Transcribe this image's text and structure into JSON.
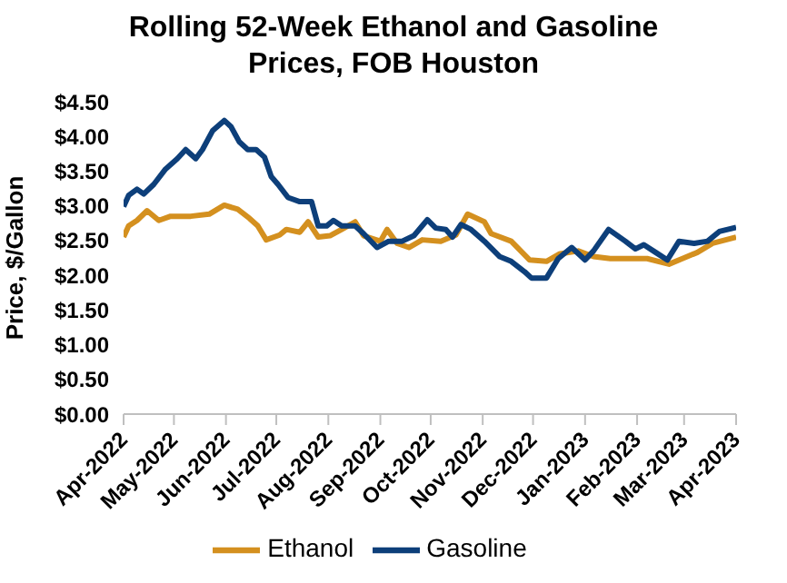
{
  "chart_data": {
    "type": "line",
    "title": "Rolling 52-Week Ethanol and Gasoline Prices, FOB Houston",
    "ylabel": "Price, $/Gallon",
    "ylim": [
      0,
      4.5
    ],
    "yticks": [
      {
        "value": 0,
        "label": "$0.00"
      },
      {
        "value": 0.5,
        "label": "$0.50"
      },
      {
        "value": 1,
        "label": "$1.00"
      },
      {
        "value": 1.5,
        "label": "$1.50"
      },
      {
        "value": 2,
        "label": "$2.00"
      },
      {
        "value": 2.5,
        "label": "$2.50"
      },
      {
        "value": 3,
        "label": "$3.00"
      },
      {
        "value": 3.5,
        "label": "$3.50"
      },
      {
        "value": 4,
        "label": "$4.00"
      },
      {
        "value": 4.5,
        "label": "$4.50"
      }
    ],
    "xlim": [
      "2022-04-01",
      "2023-04-01"
    ],
    "xticks": [
      {
        "value": "2022-04-01",
        "label": "Apr-2022"
      },
      {
        "value": "2022-05-01",
        "label": "May-2022"
      },
      {
        "value": "2022-06-01",
        "label": "Jun-2022"
      },
      {
        "value": "2022-07-01",
        "label": "Jul-2022"
      },
      {
        "value": "2022-08-01",
        "label": "Aug-2022"
      },
      {
        "value": "2022-09-01",
        "label": "Sep-2022"
      },
      {
        "value": "2022-10-01",
        "label": "Oct-2022"
      },
      {
        "value": "2022-11-01",
        "label": "Nov-2022"
      },
      {
        "value": "2022-12-01",
        "label": "Dec-2022"
      },
      {
        "value": "2023-01-01",
        "label": "Jan-2023"
      },
      {
        "value": "2023-02-01",
        "label": "Feb-2023"
      },
      {
        "value": "2023-03-01",
        "label": "Mar-2023"
      },
      {
        "value": "2023-04-01",
        "label": "Apr-2023"
      }
    ],
    "grid": false,
    "legend": "bottom",
    "marker": "none",
    "line_style": "solid",
    "series": [
      {
        "name": "Ethanol",
        "color": "#d4901f",
        "x": [
          "2022-04-01",
          "2022-04-04",
          "2022-04-09",
          "2022-04-15",
          "2022-04-22",
          "2022-04-29",
          "2022-05-11",
          "2022-05-22",
          "2022-05-31",
          "2022-06-08",
          "2022-06-15",
          "2022-06-20",
          "2022-06-25",
          "2022-07-03",
          "2022-07-07",
          "2022-07-15",
          "2022-07-20",
          "2022-07-26",
          "2022-08-02",
          "2022-08-09",
          "2022-08-17",
          "2022-08-22",
          "2022-09-01",
          "2022-09-05",
          "2022-09-11",
          "2022-09-18",
          "2022-09-26",
          "2022-10-07",
          "2022-10-16",
          "2022-10-23",
          "2022-11-02",
          "2022-11-06",
          "2022-11-18",
          "2022-11-29",
          "2022-12-09",
          "2022-12-17",
          "2022-12-28",
          "2023-01-06",
          "2023-01-16",
          "2023-02-07",
          "2023-02-20",
          "2023-02-28",
          "2023-03-09",
          "2023-03-18",
          "2023-04-01"
        ],
        "values": [
          2.55,
          2.71,
          2.79,
          2.93,
          2.79,
          2.85,
          2.85,
          2.88,
          3.01,
          2.95,
          2.82,
          2.71,
          2.51,
          2.58,
          2.66,
          2.62,
          2.77,
          2.55,
          2.57,
          2.66,
          2.77,
          2.57,
          2.49,
          2.66,
          2.46,
          2.4,
          2.51,
          2.49,
          2.58,
          2.88,
          2.77,
          2.6,
          2.49,
          2.22,
          2.2,
          2.31,
          2.35,
          2.27,
          2.24,
          2.24,
          2.16,
          2.24,
          2.33,
          2.46,
          2.55
        ]
      },
      {
        "name": "Gasoline",
        "color": "#0d3f7a",
        "x": [
          "2022-04-01",
          "2022-04-04",
          "2022-04-09",
          "2022-04-13",
          "2022-04-19",
          "2022-04-26",
          "2022-05-03",
          "2022-05-08",
          "2022-05-14",
          "2022-05-18",
          "2022-05-24",
          "2022-05-31",
          "2022-06-04",
          "2022-06-09",
          "2022-06-14",
          "2022-06-19",
          "2022-06-24",
          "2022-06-28",
          "2022-07-02",
          "2022-07-08",
          "2022-07-15",
          "2022-07-22",
          "2022-07-26",
          "2022-07-31",
          "2022-08-04",
          "2022-08-09",
          "2022-08-17",
          "2022-08-22",
          "2022-08-30",
          "2022-09-06",
          "2022-09-14",
          "2022-09-21",
          "2022-09-29",
          "2022-10-04",
          "2022-10-10",
          "2022-10-14",
          "2022-10-19",
          "2022-10-25",
          "2022-11-02",
          "2022-11-11",
          "2022-11-18",
          "2022-11-26",
          "2022-11-30",
          "2022-12-09",
          "2022-12-16",
          "2022-12-24",
          "2023-01-01",
          "2023-01-06",
          "2023-01-15",
          "2023-01-25",
          "2023-01-31",
          "2023-02-05",
          "2023-02-12",
          "2023-02-19",
          "2023-02-26",
          "2023-03-07",
          "2023-03-15",
          "2023-03-22",
          "2023-04-01"
        ],
        "values": [
          2.99,
          3.15,
          3.24,
          3.17,
          3.31,
          3.53,
          3.68,
          3.81,
          3.68,
          3.81,
          4.08,
          4.23,
          4.14,
          3.92,
          3.81,
          3.81,
          3.7,
          3.42,
          3.31,
          3.12,
          3.06,
          3.06,
          2.71,
          2.71,
          2.79,
          2.71,
          2.71,
          2.6,
          2.4,
          2.49,
          2.49,
          2.57,
          2.8,
          2.68,
          2.66,
          2.55,
          2.73,
          2.66,
          2.49,
          2.27,
          2.2,
          2.05,
          1.96,
          1.96,
          2.24,
          2.4,
          2.22,
          2.35,
          2.66,
          2.49,
          2.38,
          2.44,
          2.33,
          2.22,
          2.49,
          2.46,
          2.49,
          2.63,
          2.69
        ]
      }
    ]
  }
}
